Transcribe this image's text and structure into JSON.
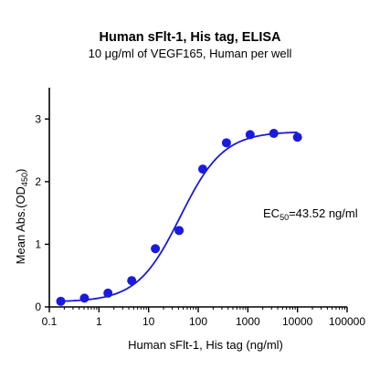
{
  "chart_data": {
    "type": "scatter",
    "title": "Human sFlt-1, His tag, ELISA",
    "subtitle": "10 μg/ml of VEGF165, Human per well",
    "xlabel": "Human sFlt-1, His tag (ng/ml)",
    "ylabel": {
      "prefix": "Mean Abs.(OD",
      "sub": "450",
      "suffix": ")"
    },
    "xscale": "log",
    "xlim": [
      0.1,
      100000
    ],
    "ylim": [
      0,
      3.5
    ],
    "x_ticks": [
      "0.1",
      "1",
      "10",
      "100",
      "1000",
      "10000",
      "100000"
    ],
    "y_ticks": [
      "0",
      "1",
      "2",
      "3"
    ],
    "annotation": {
      "prefix": "EC",
      "sub": "50",
      "suffix": "=43.52 ng/ml"
    },
    "color": "#1a1adf",
    "points": [
      {
        "x": 0.17,
        "y": 0.09
      },
      {
        "x": 0.51,
        "y": 0.14
      },
      {
        "x": 1.52,
        "y": 0.22
      },
      {
        "x": 4.57,
        "y": 0.42
      },
      {
        "x": 13.7,
        "y": 0.93
      },
      {
        "x": 41.2,
        "y": 1.22
      },
      {
        "x": 123.5,
        "y": 2.2
      },
      {
        "x": 370.4,
        "y": 2.62
      },
      {
        "x": 1111,
        "y": 2.75
      },
      {
        "x": 3333,
        "y": 2.77
      },
      {
        "x": 10000,
        "y": 2.71
      }
    ],
    "fit": {
      "bottom": 0.08,
      "top": 2.8,
      "ec50": 43.52,
      "hill": 1.0
    },
    "grid": false,
    "legend": "none"
  }
}
